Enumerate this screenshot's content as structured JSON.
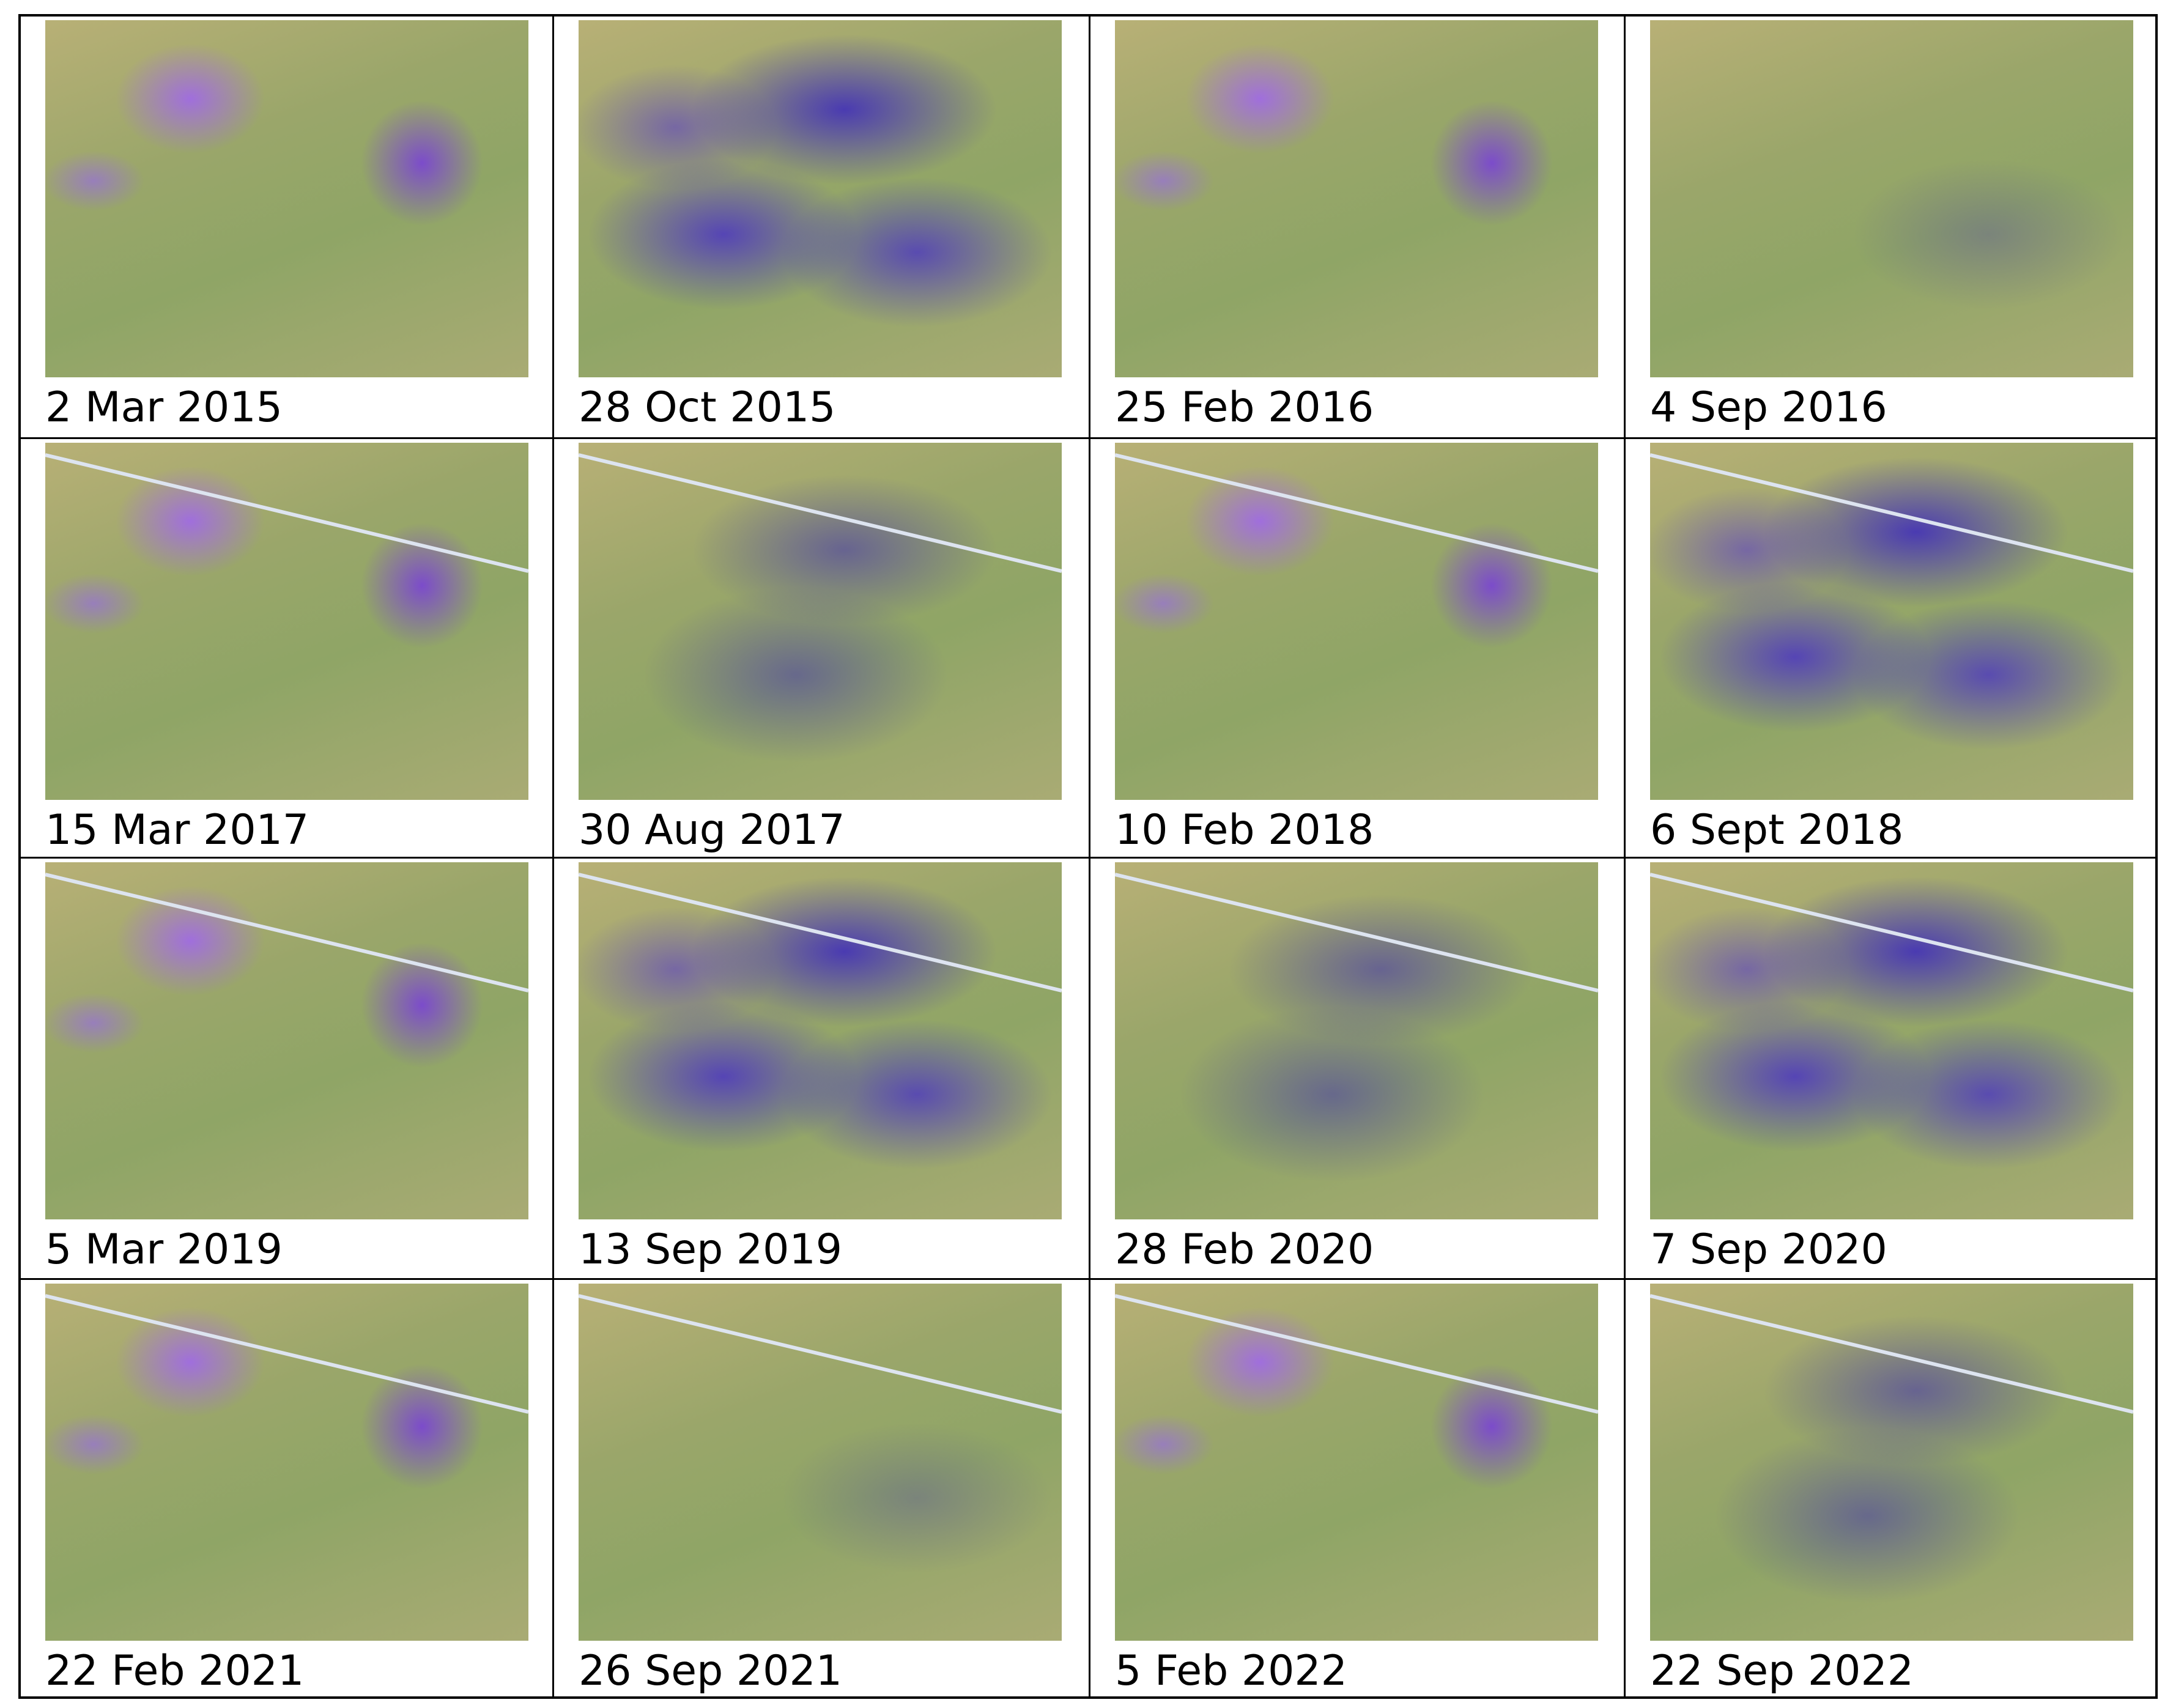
{
  "cells": [
    "2 Mar 2015",
    "28 Oct 2015",
    "25 Feb 2016",
    "4 Sep 2016",
    "15 Mar 2017",
    "30 Aug 2017",
    "10 Feb 2018",
    "6 Sept 2018",
    "5 Mar 2019",
    "13 Sep 2019",
    "28 Feb 2020",
    "7 Sep 2020",
    "22 Feb 2021",
    "26 Sep 2021",
    "5 Feb 2022",
    "22 Sep 2022"
  ]
}
